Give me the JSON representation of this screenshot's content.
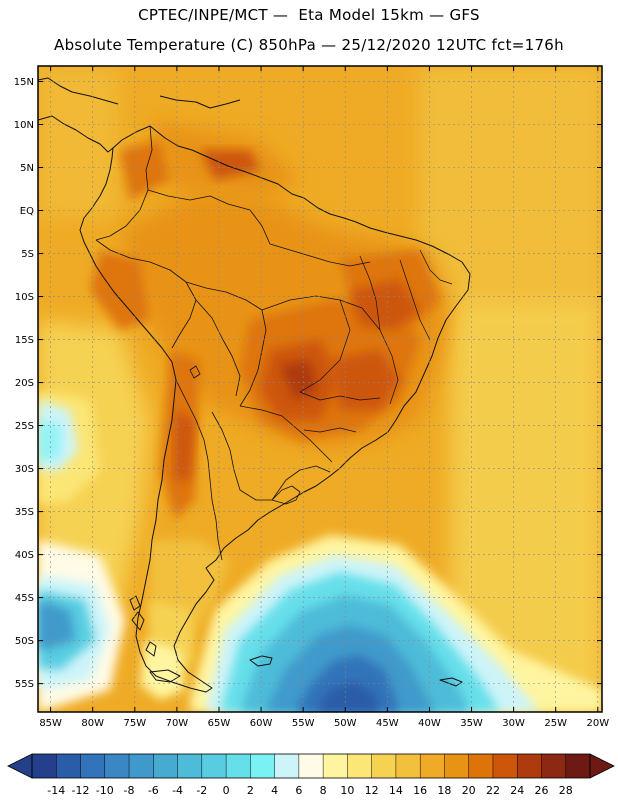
{
  "title_line1": "CPTEC/INPE/MCT —  Eta Model 15km — GFS",
  "title_line2": "Absolute Temperature (C) 850hPa — 25/12/2020 12UTC fct=176h",
  "lat_labels": [
    "15N",
    "10N",
    "5N",
    "EQ",
    "5S",
    "10S",
    "15S",
    "20S",
    "25S",
    "30S",
    "35S",
    "40S",
    "45S",
    "50S",
    "55S"
  ],
  "lat_values": [
    15,
    10,
    5,
    0,
    -5,
    -10,
    -15,
    -20,
    -25,
    -30,
    -35,
    -40,
    -45,
    -50,
    -55
  ],
  "lon_labels": [
    "85W",
    "80W",
    "75W",
    "70W",
    "65W",
    "60W",
    "55W",
    "50W",
    "45W",
    "40W",
    "35W",
    "30W",
    "25W",
    "20W"
  ],
  "lon_values": [
    -85,
    -80,
    -75,
    -70,
    -65,
    -60,
    -55,
    -50,
    -45,
    -40,
    -35,
    -30,
    -25,
    -20
  ],
  "extent": {
    "lon_min": -86.5,
    "lon_max": -19.5,
    "lat_min": -58.3,
    "lat_max": 16.8
  },
  "colorbar": {
    "labels": [
      "-14",
      "-12",
      "-10",
      "-8",
      "-6",
      "-4",
      "-2",
      "0",
      "2",
      "4",
      "6",
      "8",
      "10",
      "12",
      "14",
      "16",
      "18",
      "20",
      "22",
      "24",
      "26",
      "28"
    ],
    "colors": [
      "#243f8c",
      "#2b5ca8",
      "#3273b9",
      "#3a87c4",
      "#3f9acb",
      "#46aad1",
      "#4ebcd9",
      "#58cde1",
      "#66dfea",
      "#7af2f4",
      "#cdf4f9",
      "#fffbe6",
      "#fff5a0",
      "#fbe676",
      "#f6d253",
      "#f2c03c",
      "#efab25",
      "#e89314",
      "#de7409",
      "#cd560a",
      "#ad3b0e",
      "#8d2812",
      "#6e1a14"
    ]
  },
  "colors": {
    "ocean_background": "#f0a620",
    "land_border": "#111111",
    "grid": "#888888"
  }
}
